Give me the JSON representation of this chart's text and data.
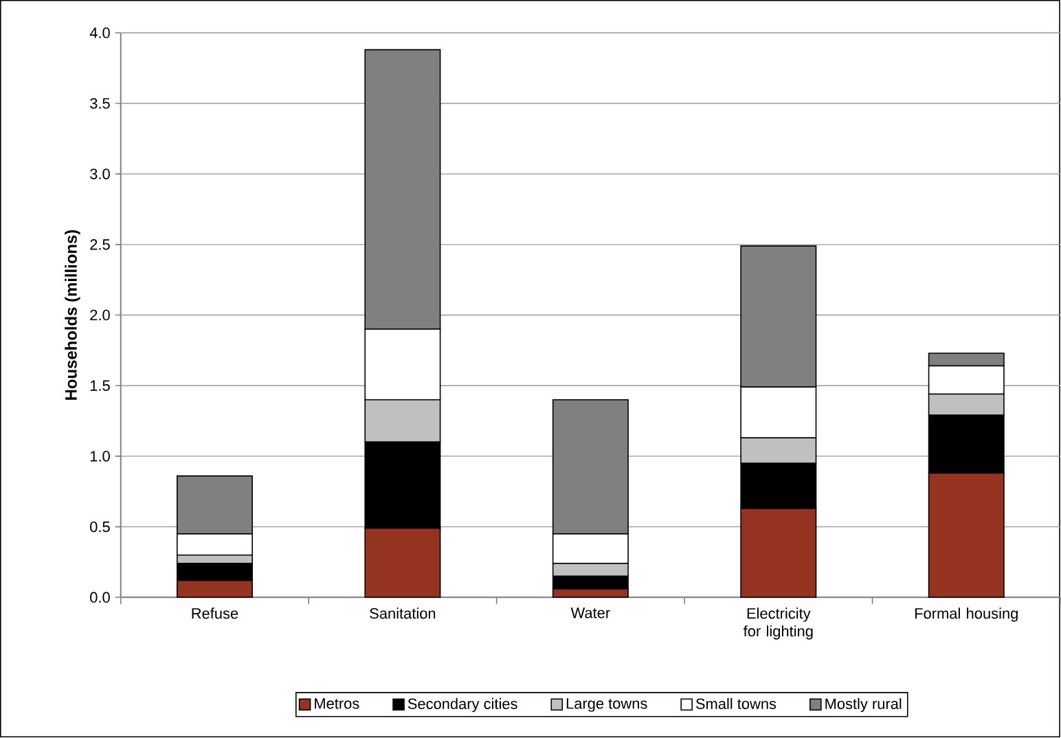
{
  "chart_data": {
    "type": "bar",
    "stacked": true,
    "ylabel": "Households (millions)",
    "categories": [
      "Refuse",
      "Sanitation",
      "Water",
      "Electricity for lighting",
      "Formal housing"
    ],
    "series": [
      {
        "name": "Metros",
        "color": "#943420",
        "values": [
          0.12,
          0.49,
          0.06,
          0.63,
          0.88
        ]
      },
      {
        "name": "Secondary cities",
        "color": "#000000",
        "values": [
          0.12,
          0.61,
          0.09,
          0.32,
          0.41
        ]
      },
      {
        "name": "Large towns",
        "color": "#c0c0c0",
        "values": [
          0.06,
          0.3,
          0.09,
          0.18,
          0.15
        ]
      },
      {
        "name": "Small towns",
        "color": "#ffffff",
        "values": [
          0.15,
          0.5,
          0.21,
          0.36,
          0.2
        ]
      },
      {
        "name": "Mostly rural",
        "color": "#808080",
        "values": [
          0.41,
          1.98,
          0.95,
          1.0,
          0.09
        ]
      }
    ],
    "ylim": [
      0,
      4.0
    ],
    "yticks": [
      {
        "value": 0,
        "label": "0.0"
      },
      {
        "value": 0.5,
        "label": "0.5"
      },
      {
        "value": 1.0,
        "label": "1.0"
      },
      {
        "value": 1.5,
        "label": "1.5"
      },
      {
        "value": 2.0,
        "label": "2.0"
      },
      {
        "value": 2.5,
        "label": "2.5"
      },
      {
        "value": 3.0,
        "label": "3.0"
      },
      {
        "value": 3.5,
        "label": "3.5"
      },
      {
        "value": 4.0,
        "label": "4.0"
      }
    ],
    "grid": "y",
    "legend": "bottom"
  }
}
